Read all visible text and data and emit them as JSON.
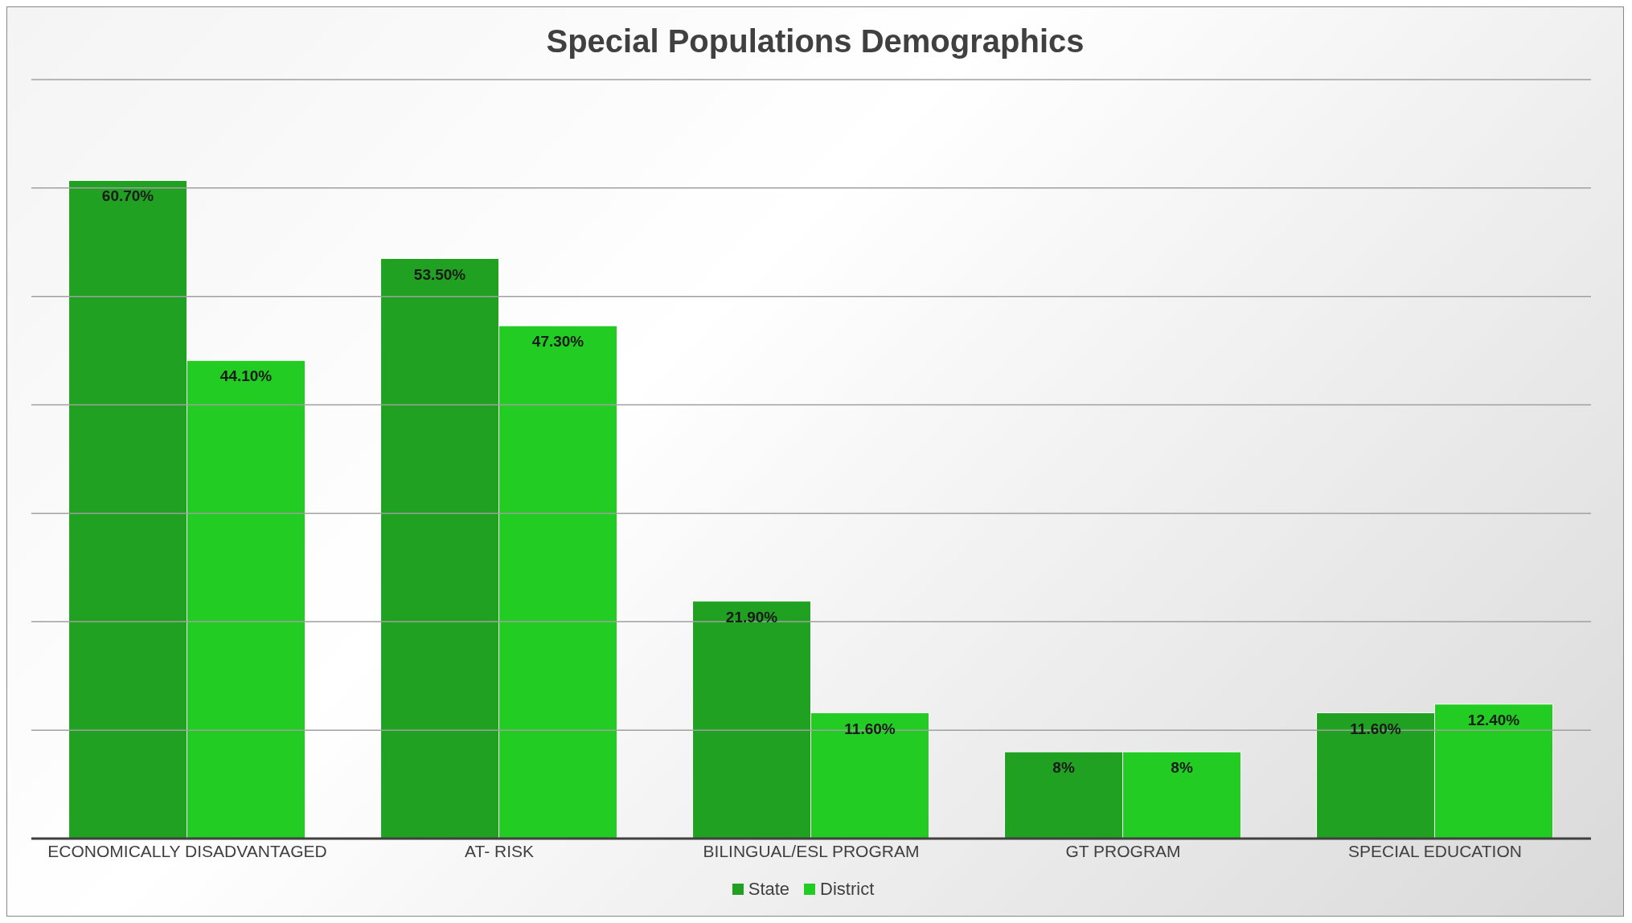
{
  "chart_data": {
    "type": "bar",
    "title": "Special Populations Demographics",
    "categories": [
      "ECONOMICALLY DISADVANTAGED",
      "AT- RISK",
      "BILINGUAL/ESL PROGRAM",
      "GT PROGRAM",
      "SPECIAL EDUCATION"
    ],
    "series": [
      {
        "name": "State",
        "color": "#21a121",
        "values": [
          60.7,
          53.5,
          21.9,
          8,
          11.6
        ],
        "value_labels": [
          "60.70%",
          "53.50%",
          "21.90%",
          "8%",
          "11.60%"
        ]
      },
      {
        "name": "District",
        "color": "#22cc22",
        "values": [
          44.1,
          47.3,
          11.6,
          8,
          12.4
        ],
        "value_labels": [
          "44.10%",
          "47.30%",
          "11.60%",
          "8%",
          "12.40%"
        ]
      }
    ],
    "ylim": [
      0,
      70
    ],
    "yticks": [
      {
        "value": 0,
        "label": null
      },
      {
        "value": 10,
        "label": null
      },
      {
        "value": 20,
        "label": null
      },
      {
        "value": 30,
        "label": null
      },
      {
        "value": 40,
        "label": null
      },
      {
        "value": 50,
        "label": null
      },
      {
        "value": 60,
        "label": null
      },
      {
        "value": 70,
        "label": null
      }
    ],
    "grid": "y",
    "legend": "bottom",
    "tick_labels": "x"
  }
}
